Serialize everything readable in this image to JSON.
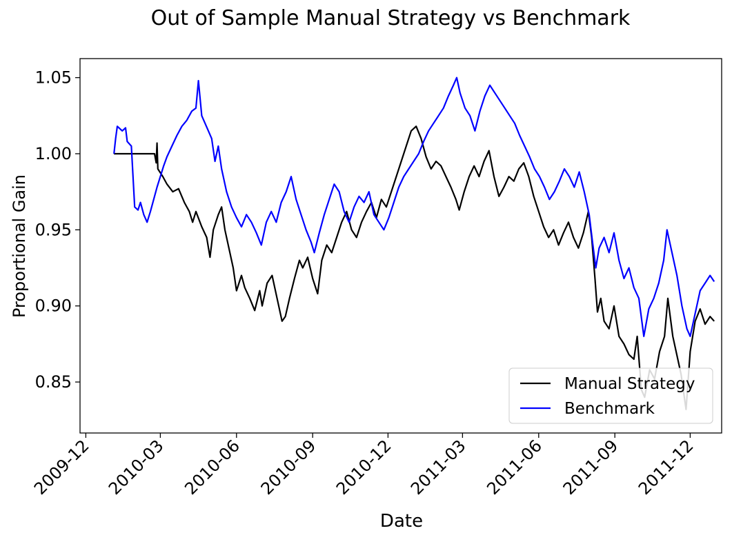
{
  "chart_data": {
    "type": "line",
    "title": "Out of Sample Manual Strategy vs Benchmark",
    "xlabel": "Date",
    "ylabel": "Proportional Gain",
    "xlim": [
      "2009-11-24",
      "2012-01-08"
    ],
    "ylim": [
      0.8165,
      1.0625
    ],
    "x_ticks": [
      "2009-12",
      "2010-03",
      "2010-06",
      "2010-09",
      "2010-12",
      "2011-03",
      "2011-06",
      "2011-09",
      "2011-12"
    ],
    "y_ticks": [
      "0.85",
      "0.90",
      "0.95",
      "1.00",
      "1.05"
    ],
    "grid": false,
    "legend_position": "lower-right",
    "series": [
      {
        "name": "Manual Strategy",
        "color": "#000000",
        "points": [
          [
            "2010-01-04",
            1.0
          ],
          [
            "2010-01-15",
            1.0
          ],
          [
            "2010-02-01",
            1.0
          ],
          [
            "2010-02-12",
            1.0
          ],
          [
            "2010-02-22",
            1.0
          ],
          [
            "2010-02-24",
            0.994
          ],
          [
            "2010-02-25",
            1.007
          ],
          [
            "2010-02-26",
            0.99
          ],
          [
            "2010-03-04",
            0.985
          ],
          [
            "2010-03-09",
            0.98
          ],
          [
            "2010-03-16",
            0.975
          ],
          [
            "2010-03-23",
            0.977
          ],
          [
            "2010-03-30",
            0.968
          ],
          [
            "2010-04-05",
            0.962
          ],
          [
            "2010-04-09",
            0.955
          ],
          [
            "2010-04-13",
            0.962
          ],
          [
            "2010-04-20",
            0.952
          ],
          [
            "2010-04-26",
            0.945
          ],
          [
            "2010-04-30",
            0.932
          ],
          [
            "2010-05-04",
            0.95
          ],
          [
            "2010-05-10",
            0.96
          ],
          [
            "2010-05-14",
            0.965
          ],
          [
            "2010-05-18",
            0.95
          ],
          [
            "2010-05-24",
            0.935
          ],
          [
            "2010-05-28",
            0.925
          ],
          [
            "2010-06-01",
            0.91
          ],
          [
            "2010-06-07",
            0.92
          ],
          [
            "2010-06-11",
            0.912
          ],
          [
            "2010-06-17",
            0.905
          ],
          [
            "2010-06-23",
            0.897
          ],
          [
            "2010-06-29",
            0.91
          ],
          [
            "2010-07-02",
            0.9
          ],
          [
            "2010-07-08",
            0.915
          ],
          [
            "2010-07-14",
            0.92
          ],
          [
            "2010-07-20",
            0.905
          ],
          [
            "2010-07-26",
            0.89
          ],
          [
            "2010-07-30",
            0.893
          ],
          [
            "2010-08-04",
            0.905
          ],
          [
            "2010-08-10",
            0.918
          ],
          [
            "2010-08-16",
            0.93
          ],
          [
            "2010-08-20",
            0.925
          ],
          [
            "2010-08-26",
            0.932
          ],
          [
            "2010-09-01",
            0.918
          ],
          [
            "2010-09-07",
            0.908
          ],
          [
            "2010-09-12",
            0.93
          ],
          [
            "2010-09-18",
            0.94
          ],
          [
            "2010-09-24",
            0.935
          ],
          [
            "2010-09-30",
            0.945
          ],
          [
            "2010-10-06",
            0.955
          ],
          [
            "2010-10-12",
            0.962
          ],
          [
            "2010-10-18",
            0.95
          ],
          [
            "2010-10-24",
            0.945
          ],
          [
            "2010-10-30",
            0.955
          ],
          [
            "2010-11-05",
            0.962
          ],
          [
            "2010-11-11",
            0.968
          ],
          [
            "2010-11-17",
            0.958
          ],
          [
            "2010-11-23",
            0.97
          ],
          [
            "2010-11-29",
            0.965
          ],
          [
            "2010-12-05",
            0.975
          ],
          [
            "2010-12-11",
            0.985
          ],
          [
            "2010-12-17",
            0.995
          ],
          [
            "2010-12-23",
            1.005
          ],
          [
            "2010-12-29",
            1.015
          ],
          [
            "2011-01-04",
            1.018
          ],
          [
            "2011-01-10",
            1.01
          ],
          [
            "2011-01-16",
            0.998
          ],
          [
            "2011-01-22",
            0.99
          ],
          [
            "2011-01-28",
            0.995
          ],
          [
            "2011-02-03",
            0.992
          ],
          [
            "2011-02-09",
            0.985
          ],
          [
            "2011-02-15",
            0.978
          ],
          [
            "2011-02-21",
            0.97
          ],
          [
            "2011-02-25",
            0.963
          ],
          [
            "2011-03-03",
            0.975
          ],
          [
            "2011-03-09",
            0.985
          ],
          [
            "2011-03-15",
            0.992
          ],
          [
            "2011-03-21",
            0.985
          ],
          [
            "2011-03-27",
            0.995
          ],
          [
            "2011-04-02",
            1.002
          ],
          [
            "2011-04-08",
            0.985
          ],
          [
            "2011-04-14",
            0.972
          ],
          [
            "2011-04-20",
            0.978
          ],
          [
            "2011-04-26",
            0.985
          ],
          [
            "2011-05-02",
            0.982
          ],
          [
            "2011-05-08",
            0.99
          ],
          [
            "2011-05-14",
            0.994
          ],
          [
            "2011-05-20",
            0.985
          ],
          [
            "2011-05-26",
            0.972
          ],
          [
            "2011-06-01",
            0.962
          ],
          [
            "2011-06-07",
            0.952
          ],
          [
            "2011-06-13",
            0.945
          ],
          [
            "2011-06-19",
            0.95
          ],
          [
            "2011-06-25",
            0.94
          ],
          [
            "2011-07-01",
            0.948
          ],
          [
            "2011-07-07",
            0.955
          ],
          [
            "2011-07-13",
            0.945
          ],
          [
            "2011-07-19",
            0.938
          ],
          [
            "2011-07-25",
            0.948
          ],
          [
            "2011-07-31",
            0.962
          ],
          [
            "2011-08-04",
            0.945
          ],
          [
            "2011-08-08",
            0.918
          ],
          [
            "2011-08-11",
            0.896
          ],
          [
            "2011-08-15",
            0.905
          ],
          [
            "2011-08-19",
            0.89
          ],
          [
            "2011-08-25",
            0.885
          ],
          [
            "2011-08-31",
            0.9
          ],
          [
            "2011-09-06",
            0.88
          ],
          [
            "2011-09-12",
            0.875
          ],
          [
            "2011-09-18",
            0.868
          ],
          [
            "2011-09-24",
            0.865
          ],
          [
            "2011-09-28",
            0.88
          ],
          [
            "2011-10-03",
            0.845
          ],
          [
            "2011-10-07",
            0.84
          ],
          [
            "2011-10-13",
            0.858
          ],
          [
            "2011-10-19",
            0.852
          ],
          [
            "2011-10-25",
            0.87
          ],
          [
            "2011-10-31",
            0.88
          ],
          [
            "2011-11-04",
            0.905
          ],
          [
            "2011-11-10",
            0.88
          ],
          [
            "2011-11-16",
            0.865
          ],
          [
            "2011-11-20",
            0.855
          ],
          [
            "2011-11-26",
            0.832
          ],
          [
            "2011-12-01",
            0.87
          ],
          [
            "2011-12-07",
            0.89
          ],
          [
            "2011-12-13",
            0.898
          ],
          [
            "2011-12-19",
            0.888
          ],
          [
            "2011-12-25",
            0.893
          ],
          [
            "2011-12-30",
            0.89
          ]
        ]
      },
      {
        "name": "Benchmark",
        "color": "#0000ff",
        "points": [
          [
            "2010-01-04",
            1.0
          ],
          [
            "2010-01-06",
            1.01
          ],
          [
            "2010-01-08",
            1.018
          ],
          [
            "2010-01-14",
            1.015
          ],
          [
            "2010-01-18",
            1.017
          ],
          [
            "2010-01-20",
            1.008
          ],
          [
            "2010-01-25",
            1.005
          ],
          [
            "2010-01-27",
            0.985
          ],
          [
            "2010-01-29",
            0.965
          ],
          [
            "2010-02-02",
            0.963
          ],
          [
            "2010-02-05",
            0.968
          ],
          [
            "2010-02-09",
            0.96
          ],
          [
            "2010-02-13",
            0.955
          ],
          [
            "2010-02-17",
            0.962
          ],
          [
            "2010-02-21",
            0.97
          ],
          [
            "2010-02-25",
            0.978
          ],
          [
            "2010-03-01",
            0.985
          ],
          [
            "2010-03-05",
            0.992
          ],
          [
            "2010-03-09",
            0.998
          ],
          [
            "2010-03-15",
            1.005
          ],
          [
            "2010-03-21",
            1.012
          ],
          [
            "2010-03-27",
            1.018
          ],
          [
            "2010-04-02",
            1.022
          ],
          [
            "2010-04-08",
            1.028
          ],
          [
            "2010-04-13",
            1.03
          ],
          [
            "2010-04-16",
            1.048
          ],
          [
            "2010-04-20",
            1.025
          ],
          [
            "2010-04-24",
            1.02
          ],
          [
            "2010-04-28",
            1.015
          ],
          [
            "2010-05-02",
            1.01
          ],
          [
            "2010-05-06",
            0.995
          ],
          [
            "2010-05-10",
            1.005
          ],
          [
            "2010-05-14",
            0.99
          ],
          [
            "2010-05-20",
            0.975
          ],
          [
            "2010-05-26",
            0.965
          ],
          [
            "2010-06-01",
            0.958
          ],
          [
            "2010-06-07",
            0.952
          ],
          [
            "2010-06-13",
            0.96
          ],
          [
            "2010-06-19",
            0.955
          ],
          [
            "2010-06-25",
            0.948
          ],
          [
            "2010-07-01",
            0.94
          ],
          [
            "2010-07-07",
            0.955
          ],
          [
            "2010-07-13",
            0.962
          ],
          [
            "2010-07-19",
            0.955
          ],
          [
            "2010-07-25",
            0.968
          ],
          [
            "2010-07-31",
            0.975
          ],
          [
            "2010-08-06",
            0.985
          ],
          [
            "2010-08-12",
            0.97
          ],
          [
            "2010-08-18",
            0.96
          ],
          [
            "2010-08-24",
            0.95
          ],
          [
            "2010-08-30",
            0.942
          ],
          [
            "2010-09-03",
            0.935
          ],
          [
            "2010-09-09",
            0.948
          ],
          [
            "2010-09-15",
            0.96
          ],
          [
            "2010-09-21",
            0.97
          ],
          [
            "2010-09-27",
            0.98
          ],
          [
            "2010-10-03",
            0.975
          ],
          [
            "2010-10-09",
            0.962
          ],
          [
            "2010-10-15",
            0.955
          ],
          [
            "2010-10-21",
            0.965
          ],
          [
            "2010-10-27",
            0.972
          ],
          [
            "2010-11-02",
            0.968
          ],
          [
            "2010-11-08",
            0.975
          ],
          [
            "2010-11-14",
            0.96
          ],
          [
            "2010-11-20",
            0.955
          ],
          [
            "2010-11-26",
            0.95
          ],
          [
            "2010-12-02",
            0.958
          ],
          [
            "2010-12-08",
            0.968
          ],
          [
            "2010-12-14",
            0.978
          ],
          [
            "2010-12-20",
            0.985
          ],
          [
            "2010-12-26",
            0.99
          ],
          [
            "2011-01-01",
            0.995
          ],
          [
            "2011-01-07",
            1.0
          ],
          [
            "2011-01-13",
            1.008
          ],
          [
            "2011-01-19",
            1.015
          ],
          [
            "2011-01-25",
            1.02
          ],
          [
            "2011-01-31",
            1.025
          ],
          [
            "2011-02-06",
            1.03
          ],
          [
            "2011-02-12",
            1.038
          ],
          [
            "2011-02-18",
            1.045
          ],
          [
            "2011-02-22",
            1.05
          ],
          [
            "2011-02-26",
            1.04
          ],
          [
            "2011-03-04",
            1.03
          ],
          [
            "2011-03-10",
            1.025
          ],
          [
            "2011-03-16",
            1.015
          ],
          [
            "2011-03-22",
            1.028
          ],
          [
            "2011-03-28",
            1.038
          ],
          [
            "2011-04-03",
            1.045
          ],
          [
            "2011-04-09",
            1.04
          ],
          [
            "2011-04-15",
            1.035
          ],
          [
            "2011-04-21",
            1.03
          ],
          [
            "2011-04-27",
            1.025
          ],
          [
            "2011-05-03",
            1.02
          ],
          [
            "2011-05-09",
            1.012
          ],
          [
            "2011-05-15",
            1.005
          ],
          [
            "2011-05-21",
            0.998
          ],
          [
            "2011-05-27",
            0.99
          ],
          [
            "2011-06-02",
            0.985
          ],
          [
            "2011-06-08",
            0.978
          ],
          [
            "2011-06-14",
            0.97
          ],
          [
            "2011-06-20",
            0.975
          ],
          [
            "2011-06-26",
            0.982
          ],
          [
            "2011-07-02",
            0.99
          ],
          [
            "2011-07-08",
            0.985
          ],
          [
            "2011-07-14",
            0.978
          ],
          [
            "2011-07-20",
            0.988
          ],
          [
            "2011-07-26",
            0.975
          ],
          [
            "2011-08-01",
            0.96
          ],
          [
            "2011-08-05",
            0.942
          ],
          [
            "2011-08-09",
            0.925
          ],
          [
            "2011-08-13",
            0.938
          ],
          [
            "2011-08-19",
            0.945
          ],
          [
            "2011-08-25",
            0.935
          ],
          [
            "2011-08-31",
            0.948
          ],
          [
            "2011-09-06",
            0.93
          ],
          [
            "2011-09-12",
            0.918
          ],
          [
            "2011-09-18",
            0.925
          ],
          [
            "2011-09-24",
            0.912
          ],
          [
            "2011-09-30",
            0.905
          ],
          [
            "2011-10-06",
            0.88
          ],
          [
            "2011-10-12",
            0.898
          ],
          [
            "2011-10-18",
            0.905
          ],
          [
            "2011-10-24",
            0.915
          ],
          [
            "2011-10-30",
            0.93
          ],
          [
            "2011-11-03",
            0.95
          ],
          [
            "2011-11-09",
            0.935
          ],
          [
            "2011-11-15",
            0.92
          ],
          [
            "2011-11-21",
            0.9
          ],
          [
            "2011-11-27",
            0.885
          ],
          [
            "2011-12-01",
            0.88
          ],
          [
            "2011-12-07",
            0.895
          ],
          [
            "2011-12-13",
            0.91
          ],
          [
            "2011-12-19",
            0.915
          ],
          [
            "2011-12-25",
            0.92
          ],
          [
            "2011-12-30",
            0.916
          ]
        ]
      }
    ]
  }
}
